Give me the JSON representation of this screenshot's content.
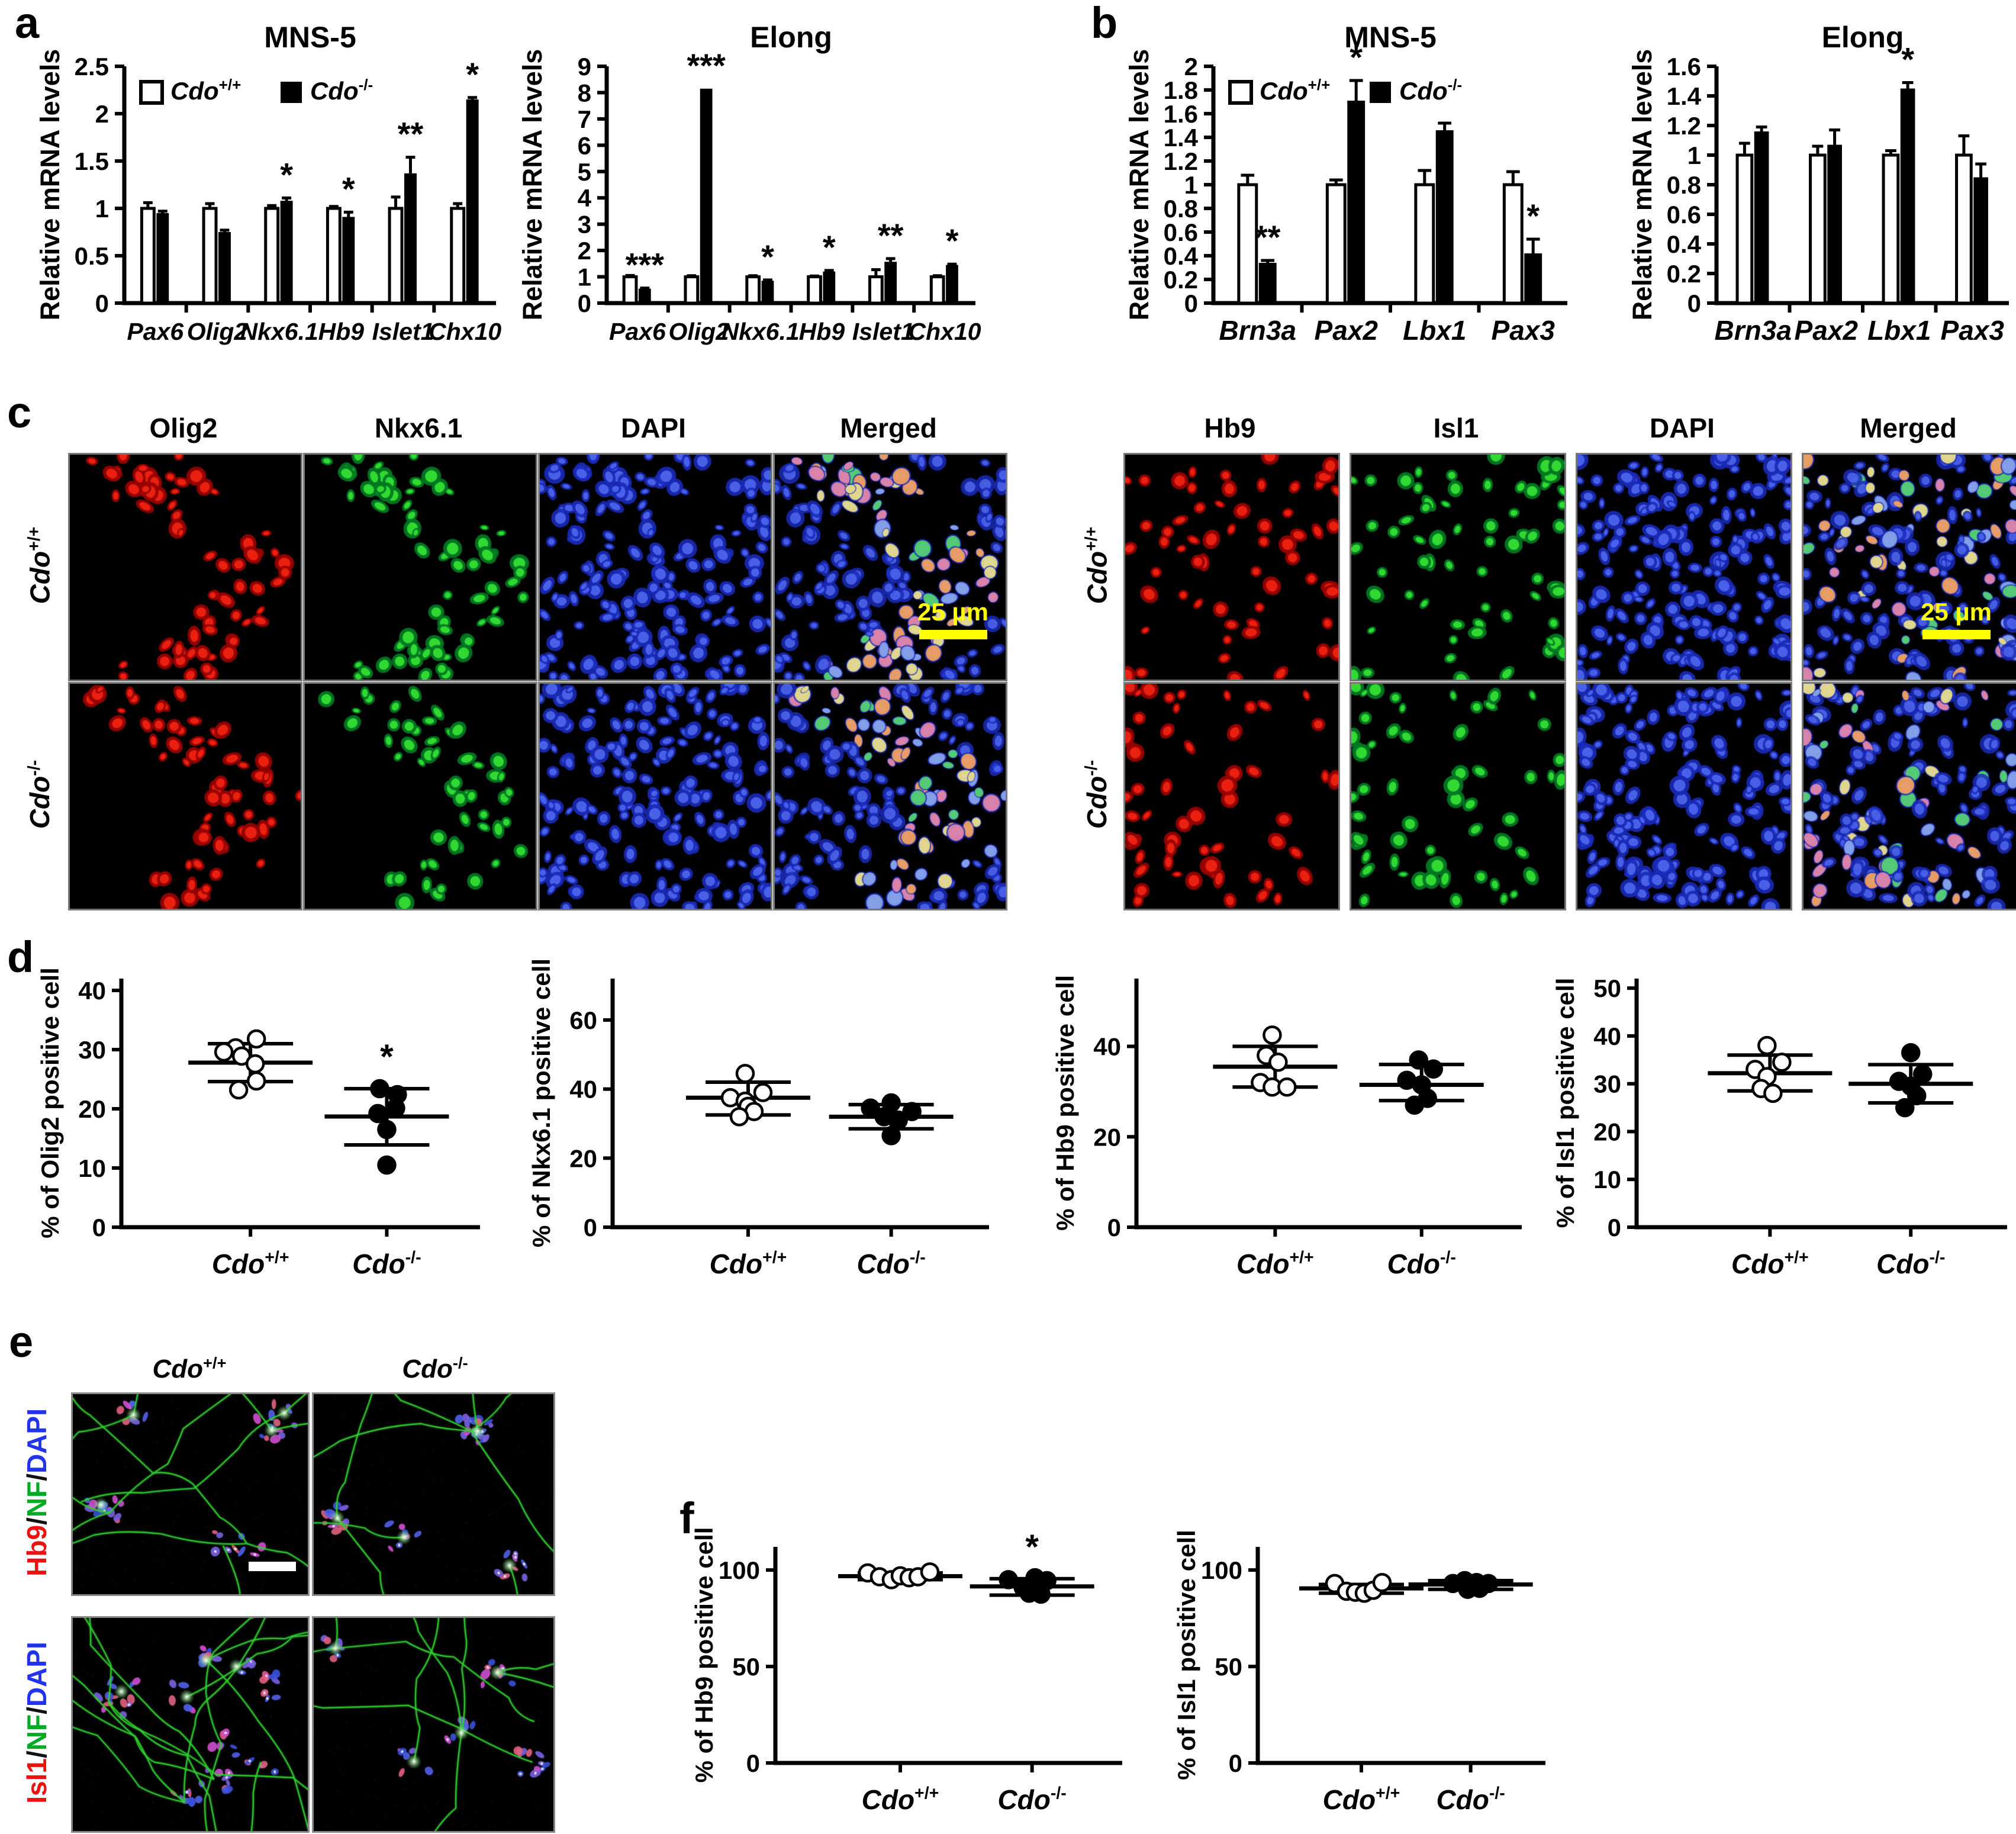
{
  "figure_bg": "#ffffff",
  "panel_labels": {
    "a": "a",
    "b": "b",
    "c": "c",
    "d": "d",
    "e": "e",
    "f": "f"
  },
  "genotypes": {
    "wt": {
      "base": "Cdo",
      "sup": "+/+"
    },
    "ko": {
      "base": "Cdo",
      "sup": "-/-"
    }
  },
  "colors": {
    "axis": "#000000",
    "wt_fill": "#ffffff",
    "ko_fill": "#000000",
    "scalebar_yellow": "#ffff00",
    "scalebar_white": "#ffffff",
    "red_channel": "#ee1111",
    "green_channel": "#00aa22",
    "blue_channel": "#2233ee",
    "slash": "#111111"
  },
  "chart_data": {
    "bar_charts": [
      {
        "id": "a1",
        "type": "bar",
        "title": "MNS-5",
        "ylabel": "Relative mRNA levels",
        "ymax": 2.5,
        "yticks": [
          "0",
          "0.5",
          "1",
          "1.5",
          "2",
          "2.5"
        ],
        "categories": [
          "Pax6",
          "Olig2",
          "Nkx6.1",
          "Hb9",
          "Islet1",
          "Chx10"
        ],
        "legend": true,
        "series": [
          {
            "name": "wt",
            "values": [
              1,
              1,
              1,
              1,
              1,
              1
            ],
            "errors": [
              0.06,
              0.05,
              0.03,
              0.02,
              0.12,
              0.05
            ]
          },
          {
            "name": "ko",
            "values": [
              0.95,
              0.75,
              1.08,
              0.91,
              1.37,
              2.15
            ],
            "errors": [
              0.02,
              0.02,
              0.03,
              0.05,
              0.17,
              0.02
            ],
            "sig": [
              "",
              "",
              "*",
              "*",
              "**",
              "*"
            ]
          }
        ]
      },
      {
        "id": "a2",
        "type": "bar",
        "title": "Elong",
        "ylabel": "Relative mRNA levels",
        "ymax": 9,
        "yticks": [
          "0",
          "1",
          "2",
          "3",
          "4",
          "5",
          "6",
          "7",
          "8",
          "9"
        ],
        "categories": [
          "Pax6",
          "Olig2",
          "Nkx6.1",
          "Hb9",
          "Islet1",
          "Chx10"
        ],
        "legend": false,
        "series": [
          {
            "name": "wt",
            "values": [
              1,
              1,
              1,
              1,
              1,
              1
            ],
            "errors": [
              0.05,
              0.04,
              0.04,
              0.03,
              0.27,
              0.04
            ]
          },
          {
            "name": "ko",
            "values": [
              0.55,
              8.15,
              0.85,
              1.2,
              1.57,
              1.45
            ],
            "errors": [
              0.02,
              0,
              0.03,
              0.04,
              0.12,
              0.03
            ],
            "sig": [
              "***",
              "***",
              "*",
              "*",
              "**",
              "*"
            ]
          }
        ]
      },
      {
        "id": "b1",
        "type": "bar",
        "title": "MNS-5",
        "ylabel": "Relative mRNA levels",
        "ymax": 2,
        "yticks": [
          "0",
          "0.2",
          "0.4",
          "0.6",
          "0.8",
          "1",
          "1.2",
          "1.4",
          "1.6",
          "1.8",
          "2"
        ],
        "categories": [
          "Brn3a",
          "Pax2",
          "Lbx1",
          "Pax3"
        ],
        "legend": true,
        "series": [
          {
            "name": "wt",
            "values": [
              1,
              1,
              1,
              1
            ],
            "errors": [
              0.08,
              0.04,
              0.12,
              0.11
            ]
          },
          {
            "name": "ko",
            "values": [
              0.34,
              1.71,
              1.46,
              0.42
            ],
            "errors": [
              0.02,
              0.17,
              0.06,
              0.12
            ],
            "sig": [
              "**",
              "*",
              "",
              "*"
            ]
          }
        ]
      },
      {
        "id": "b2",
        "type": "bar",
        "title": "Elong",
        "ylabel": "Relative mRNA levels",
        "ymax": 1.6,
        "yticks": [
          "0",
          "0.2",
          "0.4",
          "0.6",
          "0.8",
          "1",
          "1.2",
          "1.4",
          "1.6"
        ],
        "categories": [
          "Brn3a",
          "Pax2",
          "Lbx1",
          "Pax3"
        ],
        "legend": false,
        "series": [
          {
            "name": "wt",
            "values": [
              1,
              1,
              1,
              1
            ],
            "errors": [
              0.08,
              0.06,
              0.03,
              0.13
            ]
          },
          {
            "name": "ko",
            "values": [
              1.16,
              1.07,
              1.45,
              0.85
            ],
            "errors": [
              0.03,
              0.1,
              0.04,
              0.09
            ],
            "sig": [
              "",
              "",
              "*",
              ""
            ]
          }
        ]
      }
    ],
    "scatter_plots": [
      {
        "id": "d1",
        "type": "scatter",
        "ylabel": "% of Olig2 positive cell",
        "ytop": 42,
        "yticks": [
          0,
          10,
          20,
          30,
          40
        ],
        "groups": [
          {
            "name": "wt",
            "mean": 27.8,
            "hi": 31,
            "lo": 24.6,
            "points": [
              [
                -25,
                30.3
              ],
              [
                -45,
                29.6
              ],
              [
                -15,
                28.9
              ],
              [
                10,
                31.8
              ],
              [
                8,
                27.6
              ],
              [
                10,
                24.7
              ],
              [
                -20,
                23.2
              ]
            ]
          },
          {
            "name": "ko",
            "mean": 18.7,
            "hi": 23.4,
            "lo": 13.9,
            "sig": "*",
            "points": [
              [
                -12,
                23.4
              ],
              [
                18,
                22.4
              ],
              [
                15,
                20.1
              ],
              [
                -15,
                19.2
              ],
              [
                0,
                16.5
              ],
              [
                0,
                10.5
              ]
            ]
          }
        ]
      },
      {
        "id": "d2",
        "type": "scatter",
        "ylabel": "% of Nkx6.1 positive cell",
        "ytop": 72,
        "yticks": [
          0,
          20,
          40,
          60
        ],
        "groups": [
          {
            "name": "wt",
            "mean": 37.5,
            "hi": 42,
            "lo": 32.5,
            "points": [
              [
                -5,
                44.5
              ],
              [
                25,
                39
              ],
              [
                -30,
                37.5
              ],
              [
                -5,
                36.5
              ],
              [
                0,
                35
              ],
              [
                10,
                33.5
              ],
              [
                -15,
                32
              ]
            ]
          },
          {
            "name": "ko",
            "mean": 32,
            "hi": 35.5,
            "lo": 28.5,
            "sig": "",
            "points": [
              [
                0,
                36
              ],
              [
                -35,
                34.5
              ],
              [
                35,
                33.5
              ],
              [
                -12,
                32
              ],
              [
                12,
                31
              ],
              [
                0,
                26.5
              ]
            ]
          }
        ]
      },
      {
        "id": "d3",
        "type": "scatter",
        "ylabel": "% of Hb9 positive cell",
        "ytop": 55,
        "yticks": [
          0,
          20,
          40
        ],
        "groups": [
          {
            "name": "wt",
            "mean": 35.5,
            "hi": 40,
            "lo": 31,
            "points": [
              [
                -5,
                42.5
              ],
              [
                -15,
                38
              ],
              [
                5,
                36.5
              ],
              [
                -25,
                32
              ],
              [
                -5,
                31
              ],
              [
                20,
                31
              ]
            ]
          },
          {
            "name": "ko",
            "mean": 31.5,
            "hi": 36,
            "lo": 28,
            "sig": "",
            "points": [
              [
                -5,
                37
              ],
              [
                20,
                35
              ],
              [
                -25,
                32.5
              ],
              [
                0,
                31.5
              ],
              [
                10,
                28.5
              ],
              [
                -12,
                27
              ]
            ]
          }
        ]
      },
      {
        "id": "d4",
        "type": "scatter",
        "ylabel": "% of Isl1 positive cell",
        "ytop": 52,
        "yticks": [
          0,
          10,
          20,
          30,
          40,
          50
        ],
        "groups": [
          {
            "name": "wt",
            "mean": 32.2,
            "hi": 36,
            "lo": 28.5,
            "points": [
              [
                -5,
                38
              ],
              [
                20,
                34.5
              ],
              [
                -25,
                33
              ],
              [
                -5,
                31.5
              ],
              [
                -15,
                29
              ],
              [
                5,
                28
              ]
            ]
          },
          {
            "name": "ko",
            "mean": 30,
            "hi": 34,
            "lo": 26,
            "sig": "",
            "points": [
              [
                0,
                36.5
              ],
              [
                20,
                32
              ],
              [
                -20,
                30.5
              ],
              [
                0,
                29.5
              ],
              [
                10,
                27.5
              ],
              [
                -10,
                25
              ]
            ]
          }
        ]
      },
      {
        "id": "f1",
        "type": "scatter",
        "ylabel": "% of Hb9 positive cell",
        "ytop": 112,
        "yticks": [
          0,
          50,
          100
        ],
        "groups": [
          {
            "name": "wt",
            "mean": 96.8,
            "hi": 98.5,
            "lo": 95,
            "points": [
              [
                -55,
                98.5
              ],
              [
                -35,
                96.5
              ],
              [
                -15,
                95
              ],
              [
                0,
                97
              ],
              [
                15,
                96
              ],
              [
                30,
                96.5
              ],
              [
                50,
                99
              ]
            ]
          },
          {
            "name": "ko",
            "mean": 91.5,
            "hi": 95.5,
            "lo": 87,
            "sig": "*",
            "points": [
              [
                -40,
                95
              ],
              [
                5,
                96
              ],
              [
                -15,
                91
              ],
              [
                25,
                94.5
              ],
              [
                -5,
                88
              ],
              [
                15,
                87.5
              ]
            ]
          }
        ]
      },
      {
        "id": "f2",
        "type": "scatter",
        "ylabel": "% of Isl1 positive cell",
        "ytop": 112,
        "yticks": [
          0,
          50,
          100
        ],
        "groups": [
          {
            "name": "wt",
            "mean": 90.5,
            "hi": 92.5,
            "lo": 88,
            "points": [
              [
                -45,
                93
              ],
              [
                -25,
                89
              ],
              [
                -10,
                88.5
              ],
              [
                5,
                88
              ],
              [
                20,
                89.5
              ],
              [
                35,
                93.5
              ]
            ]
          },
          {
            "name": "ko",
            "mean": 92.5,
            "hi": 94.5,
            "lo": 90,
            "sig": "",
            "points": [
              [
                -30,
                93
              ],
              [
                -10,
                94.5
              ],
              [
                10,
                93.5
              ],
              [
                -5,
                90
              ],
              [
                15,
                90.5
              ],
              [
                30,
                93
              ]
            ]
          }
        ]
      }
    ]
  },
  "panel_c": {
    "left": {
      "columns": [
        "Olig2",
        "Nkx6.1",
        "DAPI",
        "Merged"
      ],
      "scale_bar": "25 µm"
    },
    "right": {
      "columns": [
        "Hb9",
        "Isl1",
        "DAPI",
        "Merged"
      ],
      "scale_bar": "25 µm"
    }
  },
  "panel_e": {
    "row1_label": [
      {
        "text": "Hb9",
        "color": "#ee1111"
      },
      {
        "text": "/",
        "color": "#111111"
      },
      {
        "text": "NF",
        "color": "#00aa22"
      },
      {
        "text": "/",
        "color": "#111111"
      },
      {
        "text": "DAPI",
        "color": "#2233ee"
      }
    ],
    "row2_label": [
      {
        "text": "Isl1",
        "color": "#ee1111"
      },
      {
        "text": "/",
        "color": "#111111"
      },
      {
        "text": "NF",
        "color": "#00aa22"
      },
      {
        "text": "/",
        "color": "#111111"
      },
      {
        "text": "DAPI",
        "color": "#2233ee"
      }
    ]
  }
}
